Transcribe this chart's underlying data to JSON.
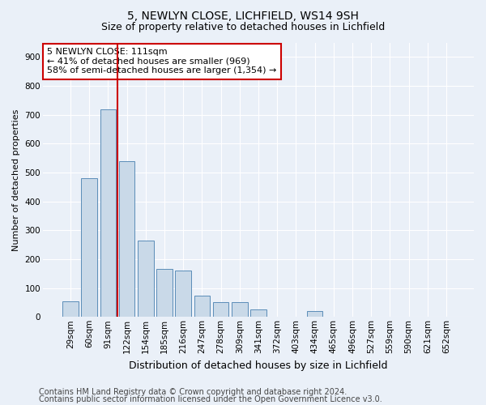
{
  "title1": "5, NEWLYN CLOSE, LICHFIELD, WS14 9SH",
  "title2": "Size of property relative to detached houses in Lichfield",
  "xlabel": "Distribution of detached houses by size in Lichfield",
  "ylabel": "Number of detached properties",
  "categories": [
    "29sqm",
    "60sqm",
    "91sqm",
    "122sqm",
    "154sqm",
    "185sqm",
    "216sqm",
    "247sqm",
    "278sqm",
    "309sqm",
    "341sqm",
    "372sqm",
    "403sqm",
    "434sqm",
    "465sqm",
    "496sqm",
    "527sqm",
    "559sqm",
    "590sqm",
    "621sqm",
    "652sqm"
  ],
  "values": [
    55,
    480,
    720,
    540,
    265,
    165,
    160,
    75,
    50,
    50,
    25,
    0,
    0,
    20,
    0,
    0,
    0,
    0,
    0,
    0,
    0
  ],
  "bar_color": "#c9d9e8",
  "bar_edge_color": "#5b8db8",
  "vline_index": 2.5,
  "vline_color": "#cc0000",
  "annotation_text": "5 NEWLYN CLOSE: 111sqm\n← 41% of detached houses are smaller (969)\n58% of semi-detached houses are larger (1,354) →",
  "annotation_box_color": "#ffffff",
  "annotation_box_edge": "#cc0000",
  "ylim": [
    0,
    950
  ],
  "yticks": [
    0,
    100,
    200,
    300,
    400,
    500,
    600,
    700,
    800,
    900
  ],
  "bg_color": "#eaf0f8",
  "plot_bg_color": "#eaf0f8",
  "footer1": "Contains HM Land Registry data © Crown copyright and database right 2024.",
  "footer2": "Contains public sector information licensed under the Open Government Licence v3.0.",
  "title1_fontsize": 10,
  "title2_fontsize": 9,
  "xlabel_fontsize": 9,
  "ylabel_fontsize": 8,
  "tick_fontsize": 7.5,
  "annotation_fontsize": 8,
  "footer_fontsize": 7
}
